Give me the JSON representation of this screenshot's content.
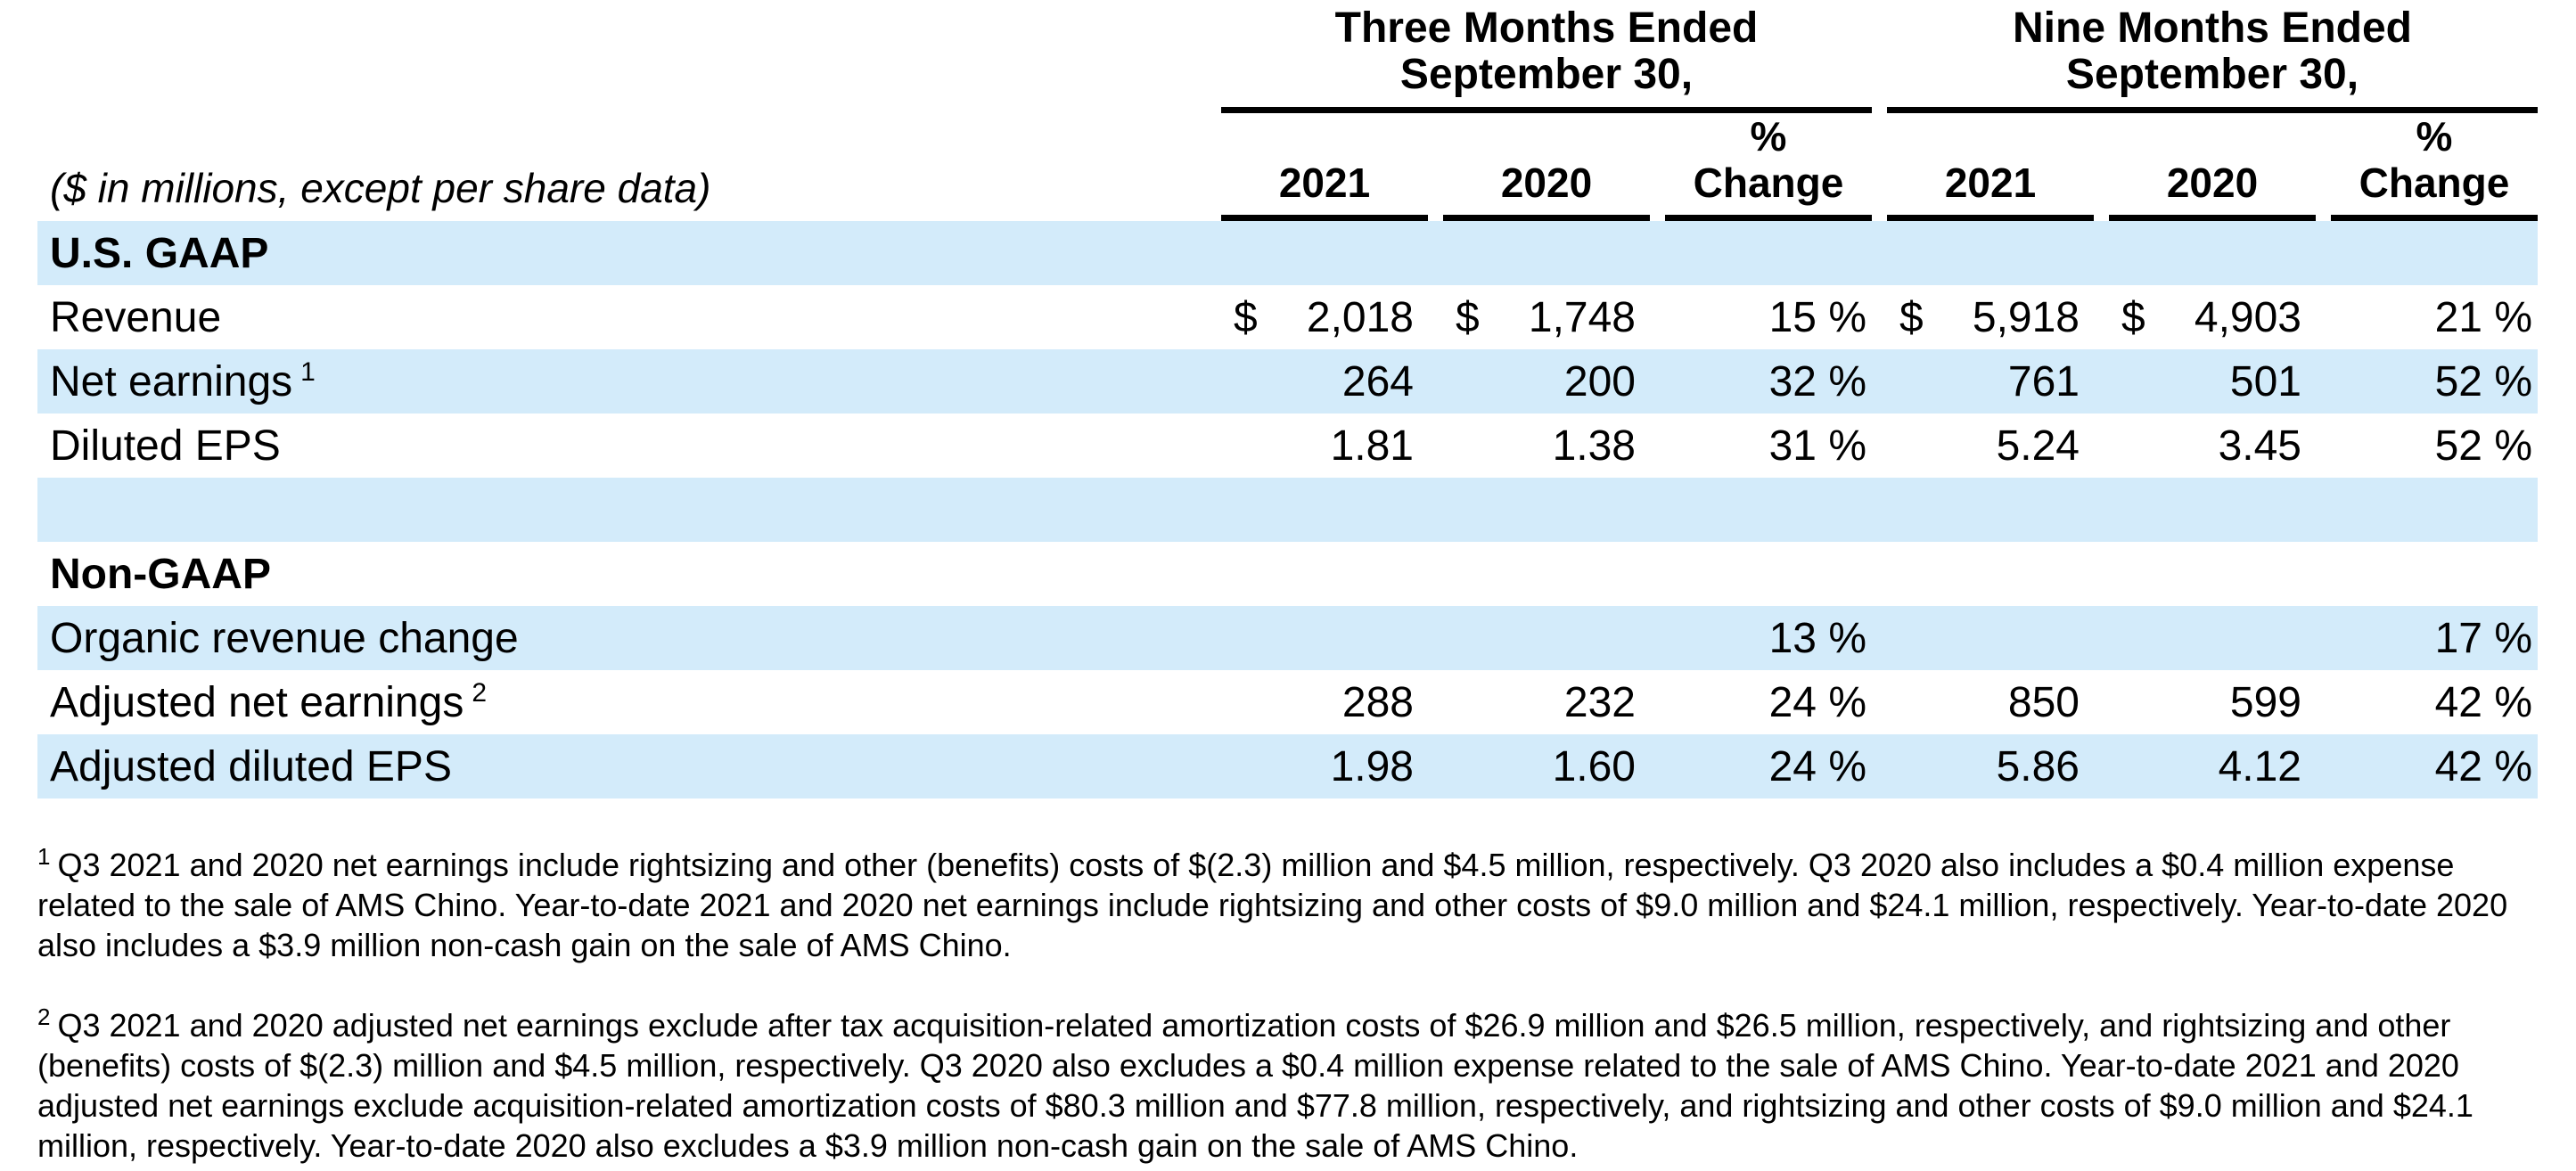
{
  "colors": {
    "row_shade": "#D3EBFA",
    "text": "#000000",
    "rule": "#000000",
    "background": "#FFFFFF"
  },
  "table": {
    "units_note": "($ in millions, except per share data)",
    "groups": [
      {
        "title_line1": "Three Months Ended",
        "title_line2": "September 30,"
      },
      {
        "title_line1": "Nine Months Ended",
        "title_line2": "September 30,"
      }
    ],
    "col_headers": [
      "2021",
      "2020",
      "%\nChange",
      "2021",
      "2020",
      "%\nChange"
    ],
    "rows": [
      {
        "label": "U.S. GAAP",
        "section": true,
        "shaded": true,
        "cells": [
          {
            "val": ""
          },
          {
            "val": ""
          },
          {
            "val": ""
          },
          {
            "val": ""
          },
          {
            "val": ""
          },
          {
            "val": ""
          }
        ]
      },
      {
        "label": "Revenue",
        "section": false,
        "shaded": false,
        "cells": [
          {
            "cur": "$",
            "val": "2,018"
          },
          {
            "cur": "$",
            "val": "1,748"
          },
          {
            "val": "15 %"
          },
          {
            "cur": "$",
            "val": "5,918"
          },
          {
            "cur": "$",
            "val": "4,903"
          },
          {
            "val": "21 %"
          }
        ]
      },
      {
        "label": "Net earnings",
        "sup": "1",
        "section": false,
        "shaded": true,
        "cells": [
          {
            "val": "264"
          },
          {
            "val": "200"
          },
          {
            "val": "32 %"
          },
          {
            "val": "761"
          },
          {
            "val": "501"
          },
          {
            "val": "52 %"
          }
        ]
      },
      {
        "label": "Diluted EPS",
        "section": false,
        "shaded": false,
        "cells": [
          {
            "val": "1.81"
          },
          {
            "val": "1.38"
          },
          {
            "val": "31 %"
          },
          {
            "val": "5.24"
          },
          {
            "val": "3.45"
          },
          {
            "val": "52 %"
          }
        ]
      },
      {
        "label": "",
        "section": false,
        "shaded": true,
        "cells": [
          {
            "val": ""
          },
          {
            "val": ""
          },
          {
            "val": ""
          },
          {
            "val": ""
          },
          {
            "val": ""
          },
          {
            "val": ""
          }
        ]
      },
      {
        "label": "Non-GAAP",
        "section": true,
        "shaded": false,
        "cells": [
          {
            "val": ""
          },
          {
            "val": ""
          },
          {
            "val": ""
          },
          {
            "val": ""
          },
          {
            "val": ""
          },
          {
            "val": ""
          }
        ]
      },
      {
        "label": "Organic revenue change",
        "section": false,
        "shaded": true,
        "cells": [
          {
            "val": ""
          },
          {
            "val": ""
          },
          {
            "val": "13 %"
          },
          {
            "val": ""
          },
          {
            "val": ""
          },
          {
            "val": "17 %"
          }
        ]
      },
      {
        "label": "Adjusted net earnings",
        "sup": "2",
        "section": false,
        "shaded": false,
        "cells": [
          {
            "val": "288"
          },
          {
            "val": "232"
          },
          {
            "val": "24 %"
          },
          {
            "val": "850"
          },
          {
            "val": "599"
          },
          {
            "val": "42 %"
          }
        ]
      },
      {
        "label": "Adjusted diluted EPS",
        "section": false,
        "shaded": true,
        "cells": [
          {
            "val": "1.98"
          },
          {
            "val": "1.60"
          },
          {
            "val": "24 %"
          },
          {
            "val": "5.86"
          },
          {
            "val": "4.12"
          },
          {
            "val": "42 %"
          }
        ]
      }
    ]
  },
  "footnotes": [
    {
      "marker": "1",
      "text": "Q3 2021 and 2020 net earnings include rightsizing and other (benefits) costs of $(2.3) million and $4.5 million, respectively. Q3 2020 also includes a $0.4 million expense related to the sale of AMS Chino. Year-to-date 2021 and 2020 net earnings include rightsizing and other costs of $9.0 million and $24.1 million, respectively. Year-to-date 2020 also includes a $3.9 million non-cash gain on the sale of AMS Chino."
    },
    {
      "marker": "2",
      "text": "Q3 2021 and 2020 adjusted net earnings exclude after tax acquisition-related amortization costs of $26.9 million and $26.5 million, respectively, and rightsizing and other (benefits) costs of $(2.3) million and $4.5 million, respectively. Q3 2020 also excludes a $0.4 million expense related to the sale of AMS Chino. Year-to-date 2021 and 2020 adjusted net earnings exclude acquisition-related amortization costs of $80.3 million and $77.8 million, respectively, and rightsizing and other costs of $9.0 million and $24.1 million, respectively. Year-to-date 2020 also excludes a $3.9 million non-cash gain on the sale of AMS Chino."
    }
  ]
}
